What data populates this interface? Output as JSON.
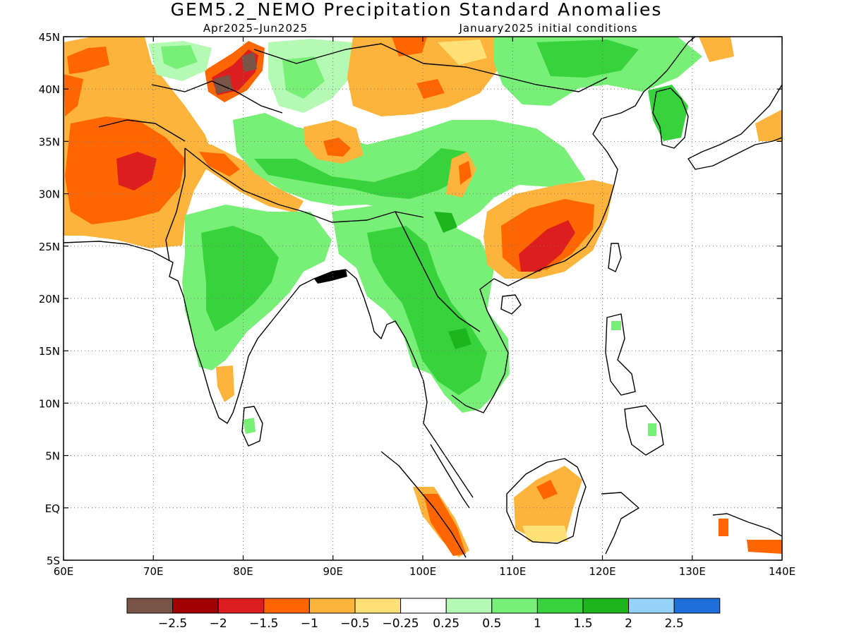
{
  "title": "GEM5.2_NEMO Precipitation Standard Anomalies",
  "subtitle_left": "Apr2025–Jun2025",
  "subtitle_right": "January2025 initial conditions",
  "map": {
    "lon_range": [
      60,
      140
    ],
    "lat_range": [
      -5,
      45
    ],
    "lon_ticks": [
      {
        "value": 60,
        "label": "60E"
      },
      {
        "value": 70,
        "label": "70E"
      },
      {
        "value": 80,
        "label": "80E"
      },
      {
        "value": 90,
        "label": "90E"
      },
      {
        "value": 100,
        "label": "100E"
      },
      {
        "value": 110,
        "label": "110E"
      },
      {
        "value": 120,
        "label": "120E"
      },
      {
        "value": 130,
        "label": "130E"
      },
      {
        "value": 140,
        "label": "140E"
      }
    ],
    "lat_ticks": [
      {
        "value": 45,
        "label": "45N"
      },
      {
        "value": 40,
        "label": "40N"
      },
      {
        "value": 35,
        "label": "35N"
      },
      {
        "value": 30,
        "label": "30N"
      },
      {
        "value": 25,
        "label": "25N"
      },
      {
        "value": 20,
        "label": "20N"
      },
      {
        "value": 15,
        "label": "15N"
      },
      {
        "value": 10,
        "label": "10N"
      },
      {
        "value": 5,
        "label": "5N"
      },
      {
        "value": 0,
        "label": "EQ"
      },
      {
        "value": -5,
        "label": "5S"
      }
    ],
    "grid": true
  },
  "colorbar": {
    "colors": [
      "#7a5446",
      "#a00000",
      "#dc1e1e",
      "#ff6600",
      "#fcb43c",
      "#ffe178",
      "#ffffff",
      "#b4fab4",
      "#78f078",
      "#37d23c",
      "#1eb41e",
      "#96d2fa",
      "#1e6edc"
    ],
    "labels": [
      "−2.5",
      "−2",
      "−1.5",
      "−1",
      "−0.5",
      "−0.25",
      "0.25",
      "0.5",
      "1",
      "1.5",
      "2",
      "2.5"
    ]
  },
  "anomaly_colors": {
    "light_orange": "#fcb43c",
    "orange": "#ff6600",
    "red": "#dc1e1e",
    "brown": "#7a5446",
    "yellow": "#ffe178",
    "pale_green": "#b4fab4",
    "light_green": "#78f078",
    "green": "#37d23c",
    "dark_green": "#1eb41e"
  }
}
